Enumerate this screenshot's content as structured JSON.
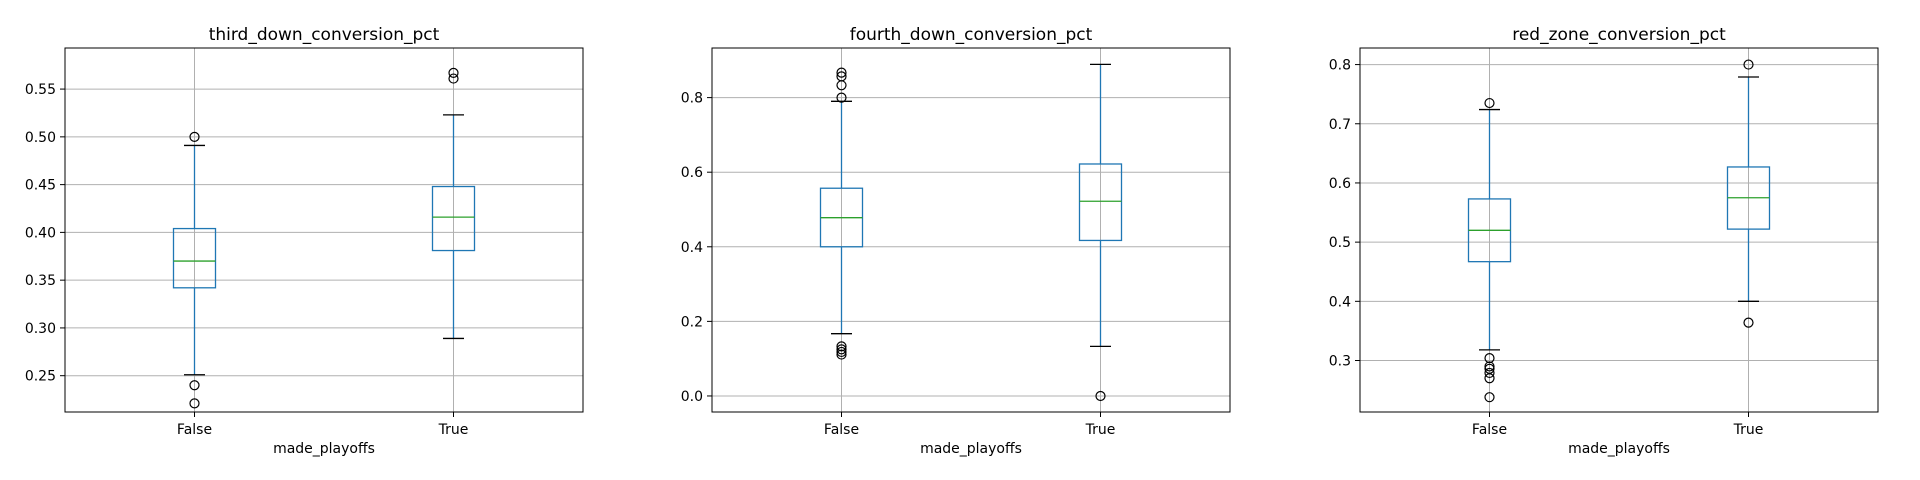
{
  "chart_data": [
    {
      "type": "box",
      "title": "third_down_conversion_pct",
      "xlabel": "made_playoffs",
      "ylabel": "",
      "categories": [
        "False",
        "True"
      ],
      "ylim": [
        0.212,
        0.593
      ],
      "yticks": [
        0.25,
        0.3,
        0.35,
        0.4,
        0.45,
        0.5,
        0.55
      ],
      "ytick_labels": [
        "0.25",
        "0.30",
        "0.35",
        "0.40",
        "0.45",
        "0.50",
        "0.55"
      ],
      "grid": true,
      "boxes": [
        {
          "category": "False",
          "whisker_low": 0.251,
          "q1": 0.342,
          "median": 0.37,
          "q3": 0.404,
          "whisker_high": 0.491,
          "fliers": [
            0.5,
            0.24,
            0.221
          ]
        },
        {
          "category": "True",
          "whisker_low": 0.289,
          "q1": 0.381,
          "median": 0.416,
          "q3": 0.448,
          "whisker_high": 0.523,
          "fliers": [
            0.567,
            0.561
          ]
        }
      ]
    },
    {
      "type": "box",
      "title": "fourth_down_conversion_pct",
      "xlabel": "made_playoffs",
      "ylabel": "",
      "categories": [
        "False",
        "True"
      ],
      "ylim": [
        -0.043,
        0.933
      ],
      "yticks": [
        0.0,
        0.2,
        0.4,
        0.6,
        0.8
      ],
      "ytick_labels": [
        "0.0",
        "0.2",
        "0.4",
        "0.6",
        "0.8"
      ],
      "grid": true,
      "boxes": [
        {
          "category": "False",
          "whisker_low": 0.167,
          "q1": 0.4,
          "median": 0.478,
          "q3": 0.557,
          "whisker_high": 0.79,
          "fliers": [
            0.867,
            0.857,
            0.833,
            0.8,
            0.133,
            0.125,
            0.118,
            0.111
          ]
        },
        {
          "category": "True",
          "whisker_low": 0.133,
          "q1": 0.417,
          "median": 0.522,
          "q3": 0.622,
          "whisker_high": 0.889,
          "fliers": [
            0.0
          ]
        }
      ]
    },
    {
      "type": "box",
      "title": "red_zone_conversion_pct",
      "xlabel": "made_playoffs",
      "ylabel": "",
      "categories": [
        "False",
        "True"
      ],
      "ylim": [
        0.213,
        0.828
      ],
      "yticks": [
        0.3,
        0.4,
        0.5,
        0.6,
        0.7,
        0.8
      ],
      "ytick_labels": [
        "0.3",
        "0.4",
        "0.5",
        "0.6",
        "0.7",
        "0.8"
      ],
      "grid": true,
      "boxes": [
        {
          "category": "False",
          "whisker_low": 0.318,
          "q1": 0.467,
          "median": 0.52,
          "q3": 0.573,
          "whisker_high": 0.724,
          "fliers": [
            0.735,
            0.304,
            0.29,
            0.286,
            0.279,
            0.27,
            0.238
          ]
        },
        {
          "category": "True",
          "whisker_low": 0.4,
          "q1": 0.522,
          "median": 0.575,
          "q3": 0.627,
          "whisker_high": 0.779,
          "fliers": [
            0.8,
            0.364
          ]
        }
      ]
    }
  ],
  "colors": {
    "box": "#1f77b4",
    "median": "#2ca02c",
    "whisker_cap": "#000000",
    "flier": "#000000",
    "grid": "#b0b0b0",
    "axes": "#000000"
  }
}
